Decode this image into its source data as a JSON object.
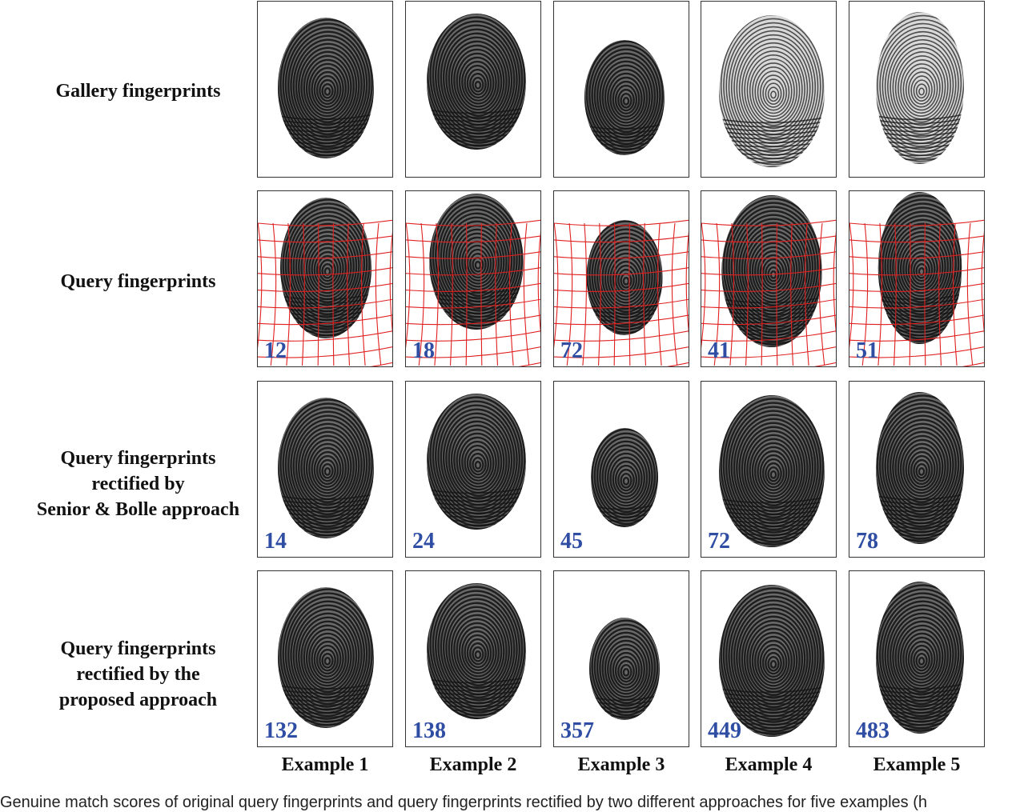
{
  "rows": [
    {
      "label_lines": [
        "Gallery fingerprints"
      ],
      "scores": []
    },
    {
      "label_lines": [
        "Query fingerprints"
      ],
      "scores": [
        "12",
        "18",
        "72",
        "41",
        "51"
      ]
    },
    {
      "label_lines": [
        "Query fingerprints",
        "rectified by",
        "Senior & Bolle approach"
      ],
      "scores": [
        "14",
        "24",
        "45",
        "72",
        "78"
      ]
    },
    {
      "label_lines": [
        "Query fingerprints",
        "rectified by the",
        "proposed approach"
      ],
      "scores": [
        "132",
        "138",
        "357",
        "449",
        "483"
      ]
    }
  ],
  "columns": [
    "Example 1",
    "Example 2",
    "Example 3",
    "Example 4",
    "Example 5"
  ],
  "caption": "Genuine match scores of original query fingerprints and query fingerprints rectified by two different approaches for five examples (h",
  "colors": {
    "score": "#2f4ea3",
    "grid": "#e02020",
    "ink": "#111111"
  }
}
